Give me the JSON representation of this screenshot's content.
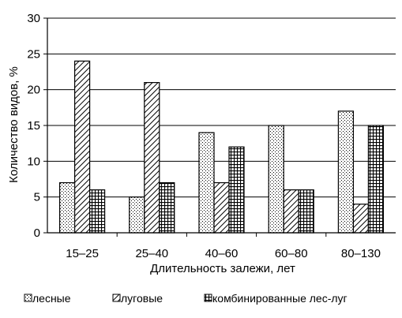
{
  "chart_data": {
    "type": "bar",
    "title": "",
    "xlabel": "Длительность залежи, лет",
    "ylabel": "Количество видов, %",
    "ylim": [
      0,
      30
    ],
    "yticks": [
      0,
      5,
      10,
      15,
      20,
      25,
      30
    ],
    "grid": true,
    "legend_position": "bottom",
    "categories": [
      "15–25",
      "25–40",
      "40–60",
      "60–80",
      "80–130"
    ],
    "series": [
      {
        "name": "лесные",
        "pattern": "dots",
        "values": [
          7,
          5,
          14,
          15,
          17
        ]
      },
      {
        "name": "луговые",
        "pattern": "diagonal-hatch",
        "values": [
          24,
          21,
          7,
          6,
          4
        ]
      },
      {
        "name": "комбинированные лес-луг",
        "pattern": "grid-hatch",
        "values": [
          6,
          7,
          12,
          6,
          15
        ]
      }
    ]
  }
}
